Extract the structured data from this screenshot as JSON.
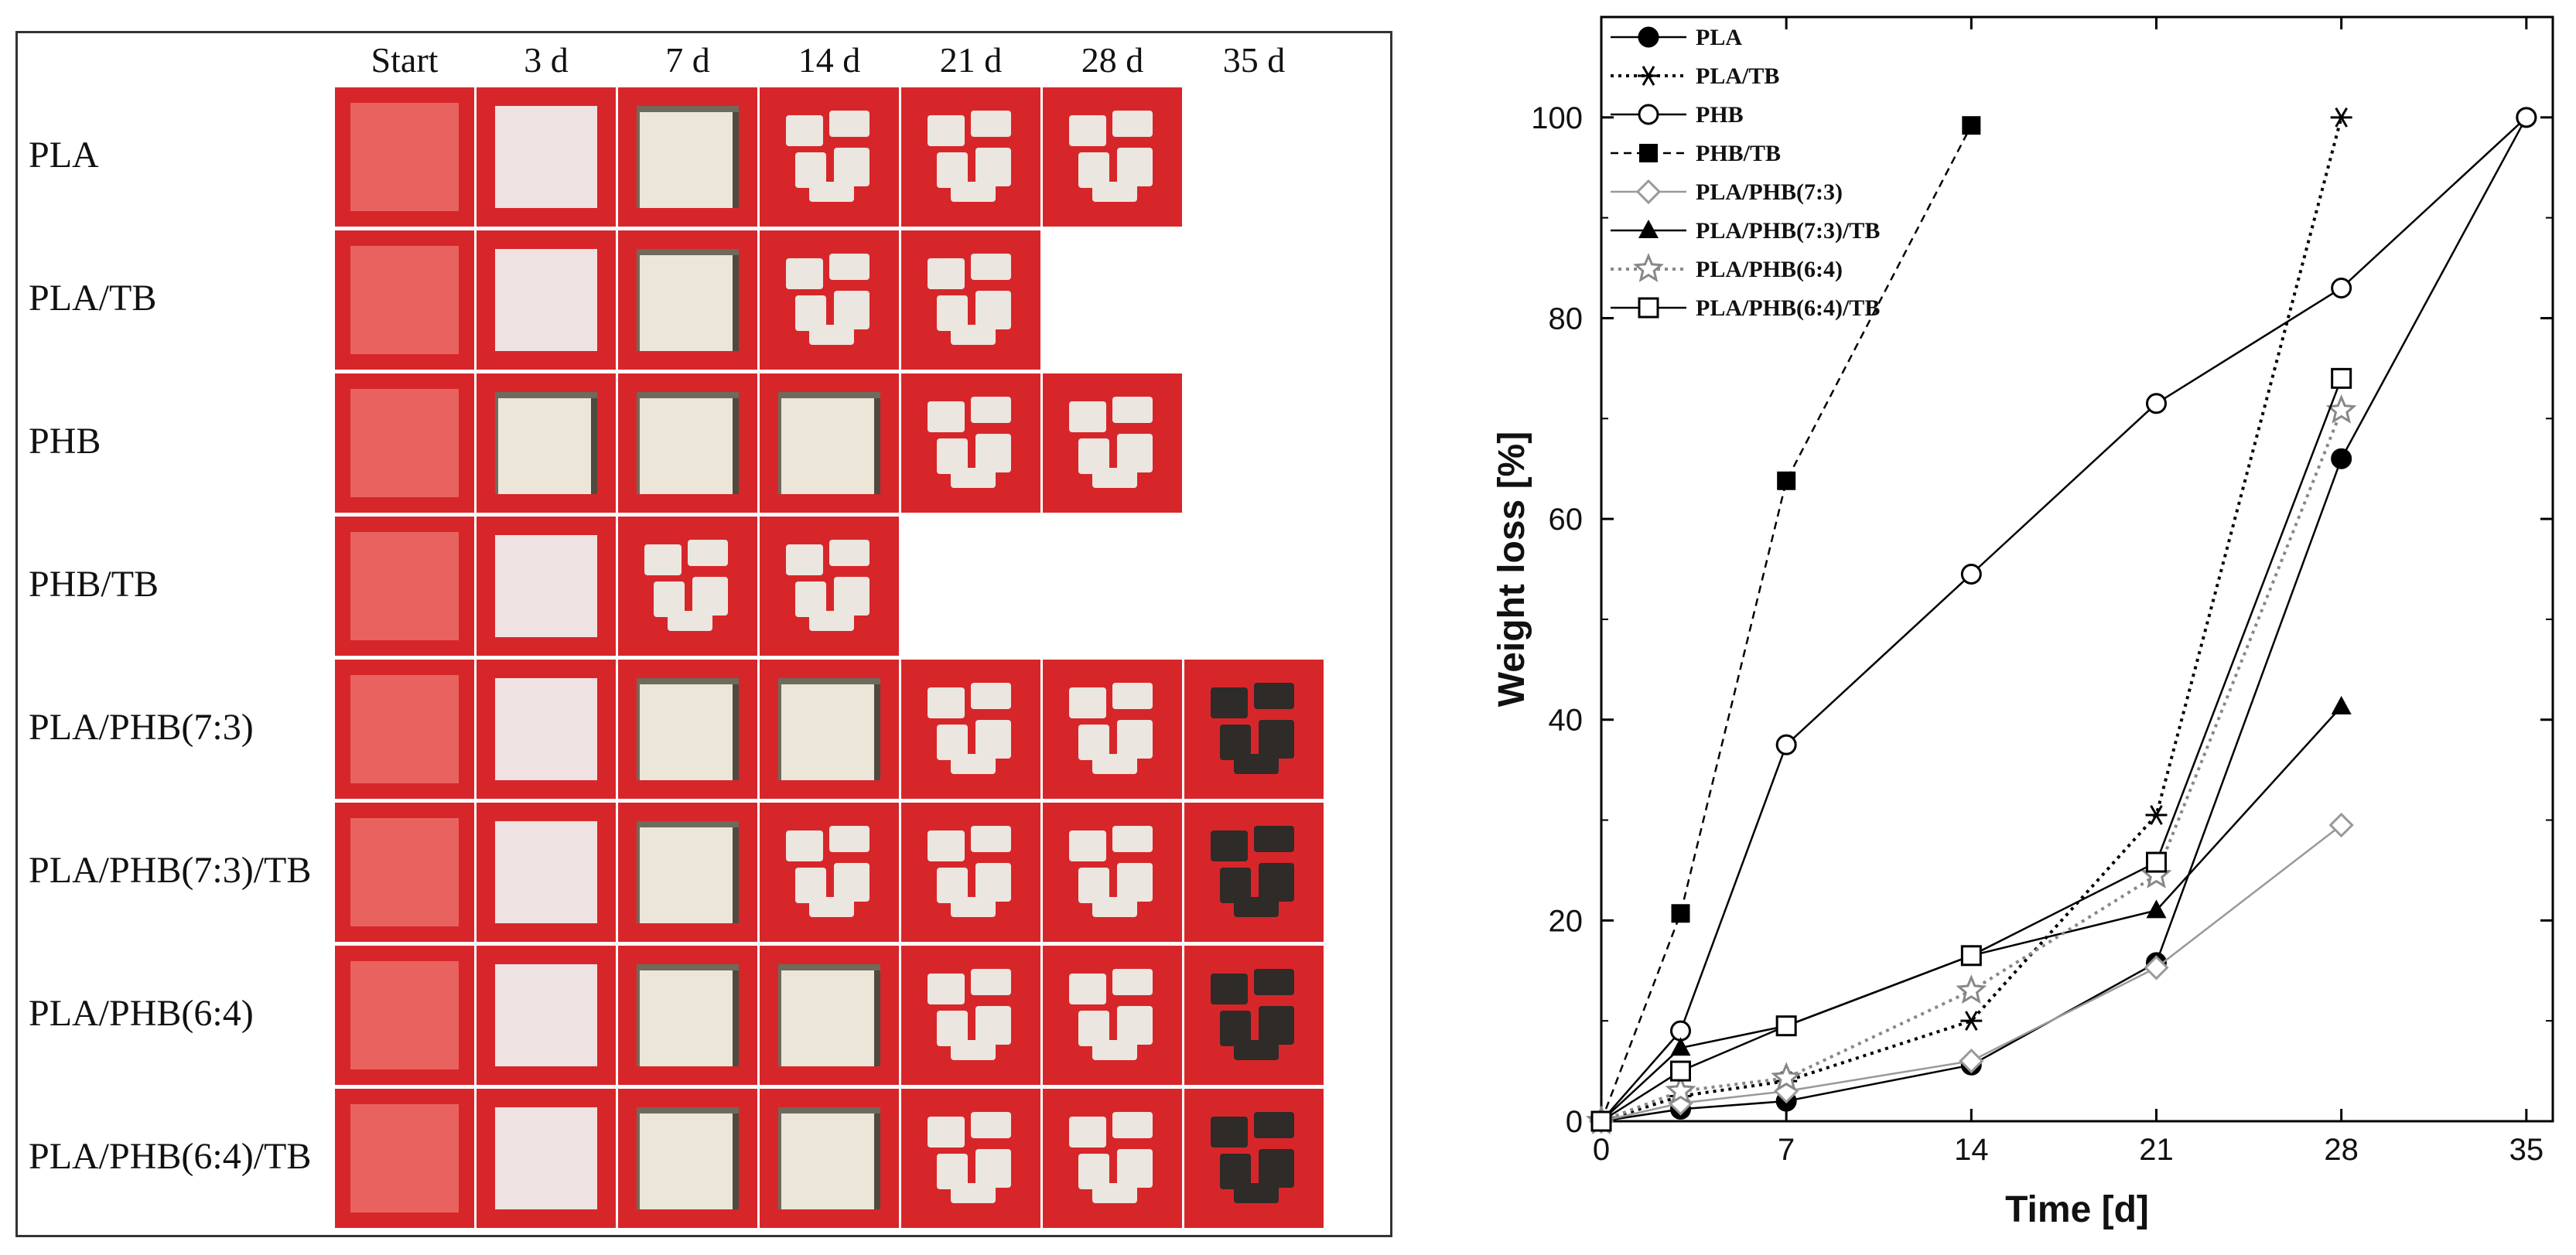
{
  "figure": {
    "columns": [
      "Start",
      "3 d",
      "7 d",
      "14 d",
      "21 d",
      "28 d",
      "35 d"
    ],
    "rows": [
      {
        "label": "PLA",
        "cells": [
          "start",
          "film",
          "spotted",
          "fragmented",
          "fragmented",
          "fragmented",
          "none"
        ]
      },
      {
        "label": "PLA/TB",
        "cells": [
          "start",
          "film",
          "spotted",
          "fragmented",
          "fragmented",
          "none",
          "none"
        ]
      },
      {
        "label": "PHB",
        "cells": [
          "start",
          "spotted",
          "spotted",
          "spotted",
          "fragmented",
          "fragmented",
          "none"
        ]
      },
      {
        "label": "PHB/TB",
        "cells": [
          "start",
          "film",
          "fragmented",
          "fragmented",
          "none",
          "none",
          "none"
        ]
      },
      {
        "label": "PLA/PHB(7:3)",
        "cells": [
          "start",
          "film",
          "spotted",
          "spotted",
          "fragmented",
          "fragmented",
          "fragmented"
        ]
      },
      {
        "label": "PLA/PHB(7:3)/TB",
        "cells": [
          "start",
          "film",
          "spotted",
          "fragmented",
          "fragmented",
          "fragmented",
          "fragmented"
        ]
      },
      {
        "label": "PLA/PHB(6:4)",
        "cells": [
          "start",
          "film",
          "spotted",
          "spotted",
          "fragmented",
          "fragmented",
          "fragmented"
        ]
      },
      {
        "label": "PLA/PHB(6:4)/TB",
        "cells": [
          "start",
          "film",
          "spotted",
          "spotted",
          "fragmented",
          "fragmented",
          "fragmented"
        ]
      }
    ],
    "colors": {
      "background": "#d7262a",
      "film": "#efe2e2",
      "residue": "#2e2b28"
    }
  },
  "chart_data": {
    "type": "line",
    "xlabel": "Time [d]",
    "ylabel": "Weight loss [%]",
    "xlim": [
      0,
      36
    ],
    "ylim": [
      0,
      110
    ],
    "xticks": [
      0,
      7,
      14,
      21,
      28,
      35
    ],
    "yticks": [
      0,
      20,
      40,
      60,
      80,
      100
    ],
    "series": [
      {
        "name": "PLA",
        "marker": "circle-filled",
        "dash": "solid",
        "color": "#000000",
        "x": [
          0,
          3,
          7,
          14,
          21,
          28,
          35
        ],
        "y": [
          0,
          1.2,
          2,
          5.6,
          15.8,
          66,
          100
        ]
      },
      {
        "name": "PLA/TB",
        "marker": "asterisk",
        "dash": "dotted",
        "color": "#000000",
        "x": [
          0,
          3,
          7,
          14,
          21,
          28
        ],
        "y": [
          0,
          2.5,
          4,
          10,
          30.5,
          100
        ]
      },
      {
        "name": "PHB",
        "marker": "circle-open",
        "dash": "solid",
        "color": "#000000",
        "x": [
          0,
          3,
          7,
          14,
          21,
          28,
          35
        ],
        "y": [
          0,
          9,
          37.5,
          54.5,
          71.5,
          83,
          100
        ]
      },
      {
        "name": "PHB/TB",
        "marker": "square-filled",
        "dash": "dashed",
        "color": "#000000",
        "x": [
          0,
          3,
          7,
          14
        ],
        "y": [
          0,
          20.7,
          63.8,
          99.2
        ]
      },
      {
        "name": "PLA/PHB(7:3)",
        "marker": "diamond-open",
        "dash": "solid",
        "color": "#999999",
        "x": [
          0,
          3,
          7,
          14,
          21,
          28
        ],
        "y": [
          0,
          1.8,
          3,
          6,
          15.3,
          29.5
        ]
      },
      {
        "name": "PLA/PHB(7:3)/TB",
        "marker": "triangle-filled",
        "dash": "solid",
        "color": "#000000",
        "x": [
          0,
          3,
          7,
          14,
          21,
          28
        ],
        "y": [
          0,
          7.3,
          9.5,
          16.5,
          21,
          41.3
        ]
      },
      {
        "name": "PLA/PHB(6:4)",
        "marker": "star-open",
        "dash": "dotted",
        "color": "#888888",
        "x": [
          0,
          3,
          7,
          14,
          21,
          28
        ],
        "y": [
          0,
          3,
          4.3,
          13,
          24.5,
          70.8
        ]
      },
      {
        "name": "PLA/PHB(6:4)/TB",
        "marker": "square-open",
        "dash": "solid",
        "color": "#000000",
        "x": [
          0,
          3,
          7,
          14,
          21,
          28
        ],
        "y": [
          0,
          5,
          9.5,
          16.5,
          25.8,
          74
        ]
      }
    ]
  }
}
